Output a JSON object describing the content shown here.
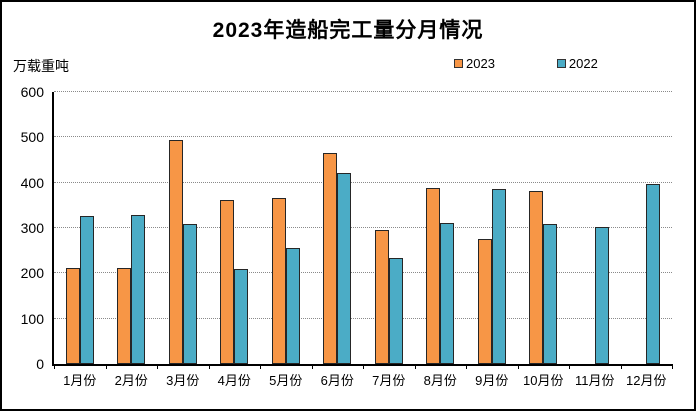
{
  "chart_data": {
    "type": "bar",
    "title": "2023年造船完工量分月情况",
    "unit_label": "万载重吨",
    "ylabel": "万载重吨",
    "xlabel": "",
    "categories": [
      "1月份",
      "2月份",
      "3月份",
      "4月份",
      "5月份",
      "6月份",
      "7月份",
      "8月份",
      "9月份",
      "10月份",
      "11月份",
      "12月份"
    ],
    "series": [
      {
        "name": "2023",
        "color": "#F79646",
        "values": [
          212,
          212,
          494,
          362,
          367,
          465,
          295,
          388,
          276,
          381,
          null,
          null
        ]
      },
      {
        "name": "2022",
        "color": "#4BACC6",
        "values": [
          326,
          328,
          308,
          209,
          256,
          422,
          234,
          310,
          385,
          308,
          303,
          397
        ]
      }
    ],
    "ylim": [
      0,
      600
    ],
    "ytick_step": 100,
    "grid": true,
    "gridline_style": "dotted",
    "legend_position": "top",
    "bar_border_color": "#262626",
    "background_color": "#ffffff"
  }
}
